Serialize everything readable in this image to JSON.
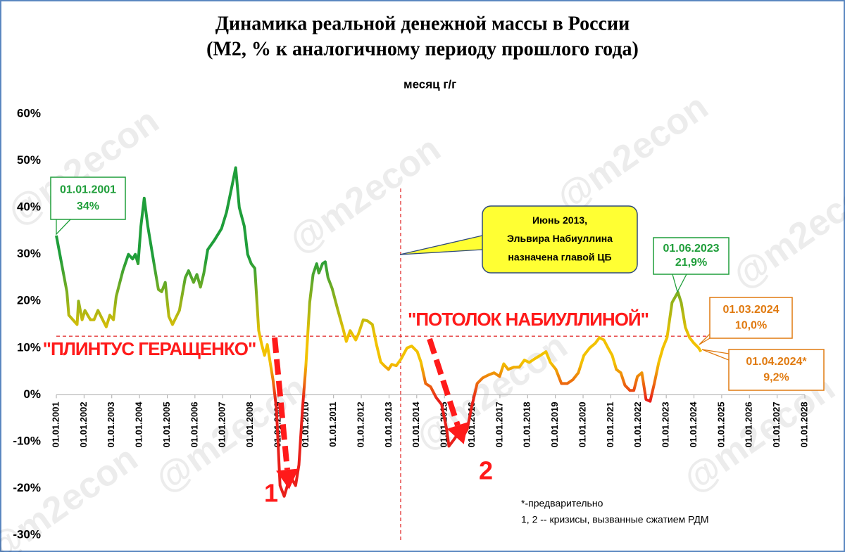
{
  "chart_data": {
    "type": "line",
    "title": [
      "Динамика реальной денежной массы в России",
      "(М2, % к аналогичному периоду прошлого года)"
    ],
    "watermark": "@m2econ",
    "xlim": [
      2001,
      2028
    ],
    "xticks": [
      {
        "value": 2001,
        "label": "01.01.2001"
      },
      {
        "value": 2002,
        "label": "01.01.2002"
      },
      {
        "value": 2003,
        "label": "01.01.2003"
      },
      {
        "value": 2004,
        "label": "01.01.2004"
      },
      {
        "value": 2005,
        "label": "01.01.2005"
      },
      {
        "value": 2006,
        "label": "01.01.2006"
      },
      {
        "value": 2007,
        "label": "01.01.2007"
      },
      {
        "value": 2008,
        "label": "01.01.2008"
      },
      {
        "value": 2009,
        "label": "01.01.2009"
      },
      {
        "value": 2010,
        "label": "01.01.2010"
      },
      {
        "value": 2011,
        "label": "01.01.2011"
      },
      {
        "value": 2012,
        "label": "01.01.2012"
      },
      {
        "value": 2013,
        "label": "01.01.2013"
      },
      {
        "value": 2014,
        "label": "01.01.2014"
      },
      {
        "value": 2015,
        "label": "01.01.2015"
      },
      {
        "value": 2016,
        "label": "01.01.2016"
      },
      {
        "value": 2017,
        "label": "01.01.2017"
      },
      {
        "value": 2018,
        "label": "01.01.2018"
      },
      {
        "value": 2019,
        "label": "01.01.2019"
      },
      {
        "value": 2020,
        "label": "01.01.2020"
      },
      {
        "value": 2021,
        "label": "01.01.2021"
      },
      {
        "value": 2022,
        "label": "01.01.2022"
      },
      {
        "value": 2023,
        "label": "01.01.2023"
      },
      {
        "value": 2024,
        "label": "01.01.2024"
      },
      {
        "value": 2025,
        "label": "01.01.2025"
      },
      {
        "value": 2026,
        "label": "01.01.2026"
      },
      {
        "value": 2027,
        "label": "01.01.2027"
      },
      {
        "value": 2028,
        "label": "01.01.2028"
      }
    ],
    "ylim": [
      -30,
      60
    ],
    "yticks": [
      {
        "value": 60,
        "label": "60%"
      },
      {
        "value": 50,
        "label": "50%"
      },
      {
        "value": 40,
        "label": "40%"
      },
      {
        "value": 30,
        "label": "30%"
      },
      {
        "value": 20,
        "label": "20%"
      },
      {
        "value": 10,
        "label": "10%"
      },
      {
        "value": 0,
        "label": "0%"
      },
      {
        "value": -10,
        "label": "-10%"
      },
      {
        "value": -20,
        "label": "-20%"
      },
      {
        "value": -30,
        "label": "-30%"
      }
    ],
    "series": [
      {
        "name": "месяц г/г",
        "colors": [
          "#1f9e3a",
          "#f2c200",
          "#e8201a"
        ],
        "x": [
          2001.0,
          2001.38,
          2001.45,
          2001.75,
          2001.8,
          2001.93,
          2002.03,
          2002.23,
          2002.36,
          2002.5,
          2002.8,
          2002.93,
          2003.06,
          2003.16,
          2003.4,
          2003.6,
          2003.75,
          2003.85,
          2003.95,
          2004.05,
          2004.17,
          2004.3,
          2004.55,
          2004.68,
          2004.8,
          2004.93,
          2005.06,
          2005.19,
          2005.44,
          2005.65,
          2005.77,
          2005.95,
          2006.07,
          2006.2,
          2006.32,
          2006.46,
          2006.7,
          2006.96,
          2007.14,
          2007.35,
          2007.47,
          2007.6,
          2007.78,
          2007.9,
          2008.03,
          2008.16,
          2008.3,
          2008.41,
          2008.51,
          2008.61,
          2008.82,
          2008.94,
          2009.07,
          2009.22,
          2009.37,
          2009.5,
          2009.63,
          2009.75,
          2009.88,
          2010.0,
          2010.14,
          2010.26,
          2010.39,
          2010.47,
          2010.6,
          2010.7,
          2010.8,
          2010.95,
          2011.15,
          2011.36,
          2011.46,
          2011.6,
          2011.8,
          2011.9,
          2012.07,
          2012.22,
          2012.4,
          2012.55,
          2012.7,
          2012.83,
          2012.98,
          2013.1,
          2013.26,
          2013.44,
          2013.65,
          2013.82,
          2014.02,
          2014.15,
          2014.32,
          2014.5,
          2014.7,
          2014.9,
          2015.08,
          2015.16,
          2015.34,
          2015.52,
          2015.67,
          2015.82,
          2015.97,
          2016.18,
          2016.38,
          2016.58,
          2016.79,
          2016.99,
          2017.14,
          2017.3,
          2017.5,
          2017.7,
          2017.88,
          2018.06,
          2018.26,
          2018.46,
          2018.66,
          2018.82,
          2019.02,
          2019.22,
          2019.43,
          2019.63,
          2019.83,
          2020.03,
          2020.24,
          2020.44,
          2020.59,
          2020.75,
          2020.9,
          2021.05,
          2021.2,
          2021.36,
          2021.51,
          2021.69,
          2021.83,
          2021.96,
          2022.12,
          2022.27,
          2022.42,
          2022.57,
          2022.73,
          2022.88,
          2023.03,
          2023.21,
          2023.42,
          2023.54,
          2023.69,
          2023.84,
          2024.0,
          2024.17,
          2024.25
        ],
        "values": [
          34,
          22,
          17,
          15,
          20,
          16,
          18,
          16,
          16,
          18,
          14.5,
          17,
          16,
          21,
          26.5,
          30,
          29,
          30,
          28,
          36,
          42,
          36,
          27,
          22.5,
          22,
          24,
          16.7,
          15,
          18,
          25,
          26.5,
          24,
          25.7,
          23,
          26,
          31,
          33,
          35.5,
          39,
          45,
          48.5,
          40,
          36,
          30,
          28,
          27,
          13.7,
          10.7,
          8.4,
          10.7,
          3,
          -3,
          -19.4,
          -21.7,
          -18.7,
          -18,
          -19.4,
          -15,
          -3,
          6,
          19.7,
          25.7,
          28,
          26,
          28,
          28.4,
          25,
          22.7,
          18.2,
          13.7,
          11.4,
          13.7,
          11.7,
          13,
          16,
          15.8,
          15,
          10.7,
          7,
          6.2,
          5.4,
          6.5,
          6.2,
          7.7,
          10,
          10.4,
          9.2,
          7,
          2.4,
          1.7,
          -0.6,
          -2.1,
          -7.4,
          -11,
          -9.6,
          -8.1,
          -8.9,
          -7.4,
          -2.9,
          2.4,
          3.6,
          4.2,
          4.7,
          3.9,
          6.6,
          5.4,
          5.9,
          5.9,
          7.4,
          6.9,
          7.7,
          8.4,
          9.2,
          6.9,
          5.4,
          2.4,
          2.4,
          3.2,
          4.7,
          8.4,
          10,
          11,
          12.2,
          11.7,
          10,
          8.4,
          5.4,
          4.7,
          2,
          0.9,
          0.9,
          3.9,
          4.7,
          -1,
          -1.4,
          2.4,
          6.9,
          10,
          12.2,
          19.7,
          21.9,
          19.7,
          14.4,
          12.2,
          11,
          10,
          9.2
        ]
      }
    ],
    "reference_line": {
      "value": 12.5,
      "color": "#e02020"
    },
    "vline": {
      "value": 2013.42,
      "color": "#e02020"
    },
    "floor_label": "\"ПЛИНТУС ГЕРАЩЕНКО\"",
    "ceiling_label": "\"ПОТОЛОК НАБИУЛЛИНОЙ\"",
    "crisis_labels": [
      "1",
      "2"
    ],
    "callouts": [
      {
        "lines": [
          "01.01.2001",
          "34%"
        ],
        "color": "#1f9e3a"
      },
      {
        "lines": [
          "Июнь 2013,",
          "Эльвира  Набиуллина",
          "назначена главой ЦБ"
        ],
        "color": "#2f4a7a",
        "fill": "#ffff33"
      },
      {
        "lines": [
          "01.06.2023",
          "21,9%"
        ],
        "color": "#1f9e3a"
      },
      {
        "lines": [
          "01.03.2024",
          "10,0%"
        ],
        "color": "#e07a10"
      },
      {
        "lines": [
          "01.04.2024*",
          "9,2%"
        ],
        "color": "#e07a10"
      }
    ],
    "notes": [
      "*-предварительно",
      "1, 2 -- кризисы, вызванные сжатием РДМ"
    ]
  }
}
